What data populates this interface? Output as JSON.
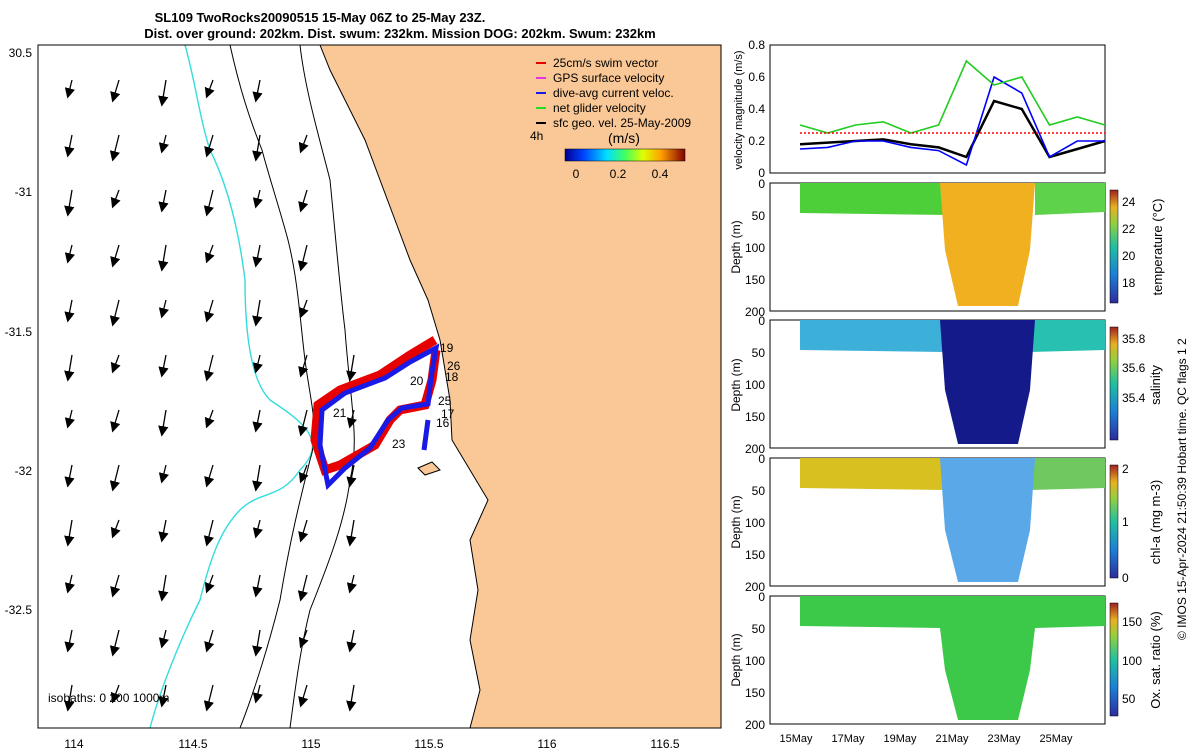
{
  "header": {
    "title": "SL109 TwoRocks20090515 15-May 06Z to 25-May 23Z.",
    "subtitle": "Dist. over ground: 202km. Dist. swum: 232km. Mission DOG: 202km. Swum: 232km"
  },
  "map": {
    "x_ticks": [
      "114",
      "114.5",
      "115",
      "115.5",
      "116",
      "116.5"
    ],
    "y_ticks": [
      "30.5",
      "-31",
      "-31.5",
      "-32",
      "-32.5"
    ],
    "legend": [
      "25cm/s swim vector",
      "GPS surface velocity",
      "dive-avg current veloc.",
      "net glider velocity",
      "sfc geo. vel. 25-May-2009"
    ],
    "legend_colors": [
      "#e60000",
      "#e633e6",
      "#1a1ae6",
      "#22dd22",
      "#000000"
    ],
    "colorbar_label": "(m/s)",
    "colorbar_ticks": [
      "0",
      "0.2",
      "0.4"
    ],
    "time_marker": "4h",
    "isobaths_label": "isobaths: 0   200  1000m",
    "day_labels": [
      "19",
      "26",
      "20",
      "18",
      "21",
      "25",
      "17",
      "16",
      "23"
    ],
    "land_color": "#fac896",
    "isobath_colors": {
      "coast": "#000000",
      "200m": "#000000",
      "1000m": "#33dddd"
    }
  },
  "panels": {
    "velocity": {
      "ylabel": "velocity magnitude (m/s)",
      "yticks": [
        "0",
        "0.2",
        "0.4",
        "0.6",
        "0.8"
      ]
    },
    "temperature": {
      "ylabel": "Depth (m)",
      "cbar_label": "temperature (°C)",
      "cbar_ticks": [
        "24",
        "22",
        "20",
        "18"
      ]
    },
    "salinity": {
      "ylabel": "Depth (m)",
      "cbar_label": "salinity",
      "cbar_ticks": [
        "35.8",
        "35.6",
        "35.4"
      ]
    },
    "chla": {
      "ylabel": "Depth (m)",
      "cbar_label": "chl-a (mg m-3)",
      "cbar_ticks": [
        "2",
        "1",
        "0"
      ]
    },
    "oxygen": {
      "ylabel": "Depth (m)",
      "cbar_label": "Ox. sat. ratio (%)",
      "cbar_ticks": [
        "150",
        "100",
        "50"
      ]
    },
    "depth_ticks": [
      "0",
      "50",
      "100",
      "150",
      "200"
    ],
    "x_ticks": [
      "15May",
      "17May",
      "19May",
      "21May",
      "23May",
      "25May"
    ]
  },
  "credit": "© IMOS 15-Apr-2024 21:50:39 Hobart time. QC flags 1  2",
  "chart_data": [
    {
      "type": "line",
      "title": "",
      "ylabel": "velocity magnitude (m/s)",
      "x": [
        "15May",
        "16May",
        "17May",
        "18May",
        "19May",
        "20May",
        "21May",
        "22May",
        "23May",
        "24May",
        "25May",
        "26May"
      ],
      "ylim": [
        0,
        0.8
      ],
      "series": [
        {
          "name": "",
          "color": "#000000",
          "values": [
            0.18,
            0.19,
            0.2,
            0.21,
            0.18,
            0.16,
            0.1,
            0.45,
            0.4,
            0.1,
            0.15,
            0.2
          ]
        },
        {
          "name": "",
          "color": "#0000ff",
          "values": [
            0.15,
            0.16,
            0.2,
            0.2,
            0.16,
            0.14,
            0.05,
            0.6,
            0.5,
            0.1,
            0.2,
            0.2
          ]
        },
        {
          "name": "",
          "color": "#22cc22",
          "values": [
            0.3,
            0.25,
            0.3,
            0.32,
            0.25,
            0.3,
            0.7,
            0.55,
            0.6,
            0.3,
            0.35,
            0.3
          ]
        },
        {
          "name": "",
          "color": "#ff0000",
          "values": [
            0.25,
            0.25,
            0.25,
            0.25,
            0.25,
            0.25,
            0.25,
            0.25,
            0.25,
            0.25,
            0.25,
            0.25
          ]
        }
      ]
    },
    {
      "type": "heatmap",
      "ylabel": "Depth (m)",
      "cbar_label": "temperature (°C)",
      "ylim": [
        200,
        0
      ],
      "clim": [
        16,
        25
      ]
    },
    {
      "type": "heatmap",
      "ylabel": "Depth (m)",
      "cbar_label": "salinity",
      "ylim": [
        200,
        0
      ],
      "clim": [
        35.3,
        35.95
      ]
    },
    {
      "type": "heatmap",
      "ylabel": "Depth (m)",
      "cbar_label": "chl-a (mg m-3)",
      "ylim": [
        200,
        0
      ],
      "clim": [
        0,
        2
      ]
    },
    {
      "type": "heatmap",
      "ylabel": "Depth (m)",
      "cbar_label": "Ox. sat. ratio (%)",
      "ylim": [
        200,
        0
      ],
      "clim": [
        25,
        175
      ]
    }
  ]
}
